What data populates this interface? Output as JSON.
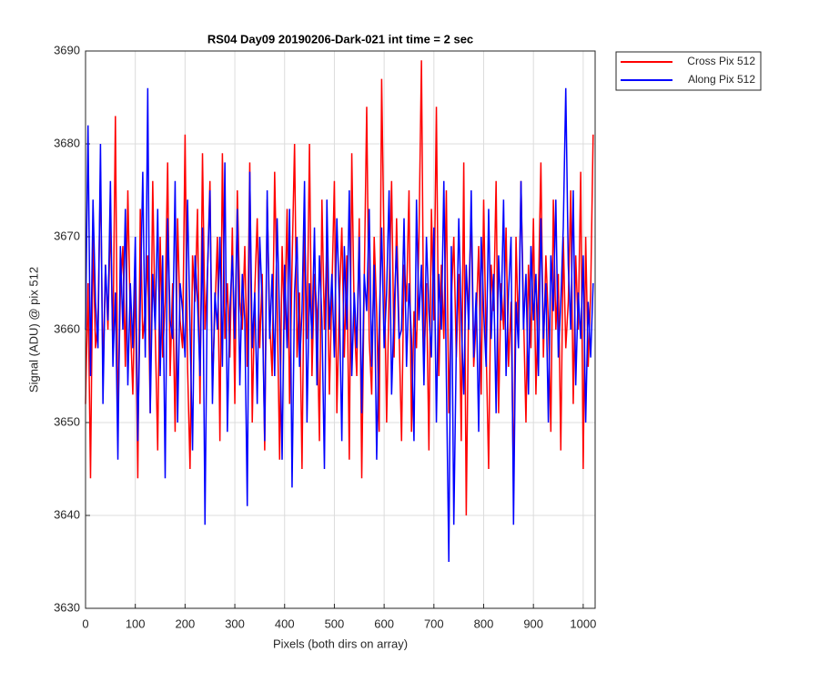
{
  "chart_data": {
    "type": "line",
    "title": "RS04 Day09 20190206-Dark-021 int time = 2 sec",
    "xlabel": "Pixels (both dirs on array)",
    "ylabel": "Signal (ADU) @ pix 512",
    "x": [
      0,
      5,
      10,
      15,
      20,
      25,
      30,
      35,
      40,
      45,
      50,
      55,
      60,
      65,
      70,
      75,
      80,
      85,
      90,
      95,
      100,
      105,
      110,
      115,
      120,
      125,
      130,
      135,
      140,
      145,
      150,
      155,
      160,
      165,
      170,
      175,
      180,
      185,
      190,
      195,
      200,
      205,
      210,
      215,
      220,
      225,
      230,
      235,
      240,
      245,
      250,
      255,
      260,
      265,
      270,
      275,
      280,
      285,
      290,
      295,
      300,
      305,
      310,
      315,
      320,
      325,
      330,
      335,
      340,
      345,
      350,
      355,
      360,
      365,
      370,
      375,
      380,
      385,
      390,
      395,
      400,
      405,
      410,
      415,
      420,
      425,
      430,
      435,
      440,
      445,
      450,
      455,
      460,
      465,
      470,
      475,
      480,
      485,
      490,
      495,
      500,
      505,
      510,
      515,
      520,
      525,
      530,
      535,
      540,
      545,
      550,
      555,
      560,
      565,
      570,
      575,
      580,
      585,
      590,
      595,
      600,
      605,
      610,
      615,
      620,
      625,
      630,
      635,
      640,
      645,
      650,
      655,
      660,
      665,
      670,
      675,
      680,
      685,
      690,
      695,
      700,
      705,
      710,
      715,
      720,
      725,
      730,
      735,
      740,
      745,
      750,
      755,
      760,
      765,
      770,
      775,
      780,
      785,
      790,
      795,
      800,
      805,
      810,
      815,
      820,
      825,
      830,
      835,
      840,
      845,
      850,
      855,
      860,
      865,
      870,
      875,
      880,
      885,
      890,
      895,
      900,
      905,
      910,
      915,
      920,
      925,
      930,
      935,
      940,
      945,
      950,
      955,
      960,
      965,
      970,
      975,
      980,
      985,
      990,
      995,
      1000,
      1005,
      1010,
      1015,
      1020
    ],
    "series": [
      {
        "name": "Cross Pix 512",
        "color": "#ff0000",
        "values": [
          3652,
          3665,
          3644,
          3670,
          3658,
          3661,
          3677,
          3655,
          3667,
          3660,
          3672,
          3658,
          3683,
          3650,
          3664,
          3669,
          3656,
          3675,
          3661,
          3653,
          3666,
          3644,
          3673,
          3659,
          3662,
          3668,
          3651,
          3676,
          3660,
          3647,
          3670,
          3657,
          3663,
          3678,
          3655,
          3665,
          3649,
          3672,
          3661,
          3658,
          3681,
          3656,
          3645,
          3668,
          3663,
          3673,
          3652,
          3679,
          3660,
          3666,
          3676,
          3654,
          3662,
          3670,
          3648,
          3679,
          3659,
          3665,
          3657,
          3671,
          3652,
          3675,
          3663,
          3660,
          3669,
          3656,
          3678,
          3650,
          3664,
          3672,
          3658,
          3666,
          3647,
          3674,
          3661,
          3655,
          3677,
          3663,
          3646,
          3669,
          3660,
          3673,
          3652,
          3667,
          3680,
          3657,
          3664,
          3645,
          3671,
          3659,
          3680,
          3655,
          3666,
          3662,
          3648,
          3674,
          3660,
          3669,
          3653,
          3664,
          3676,
          3651,
          3663,
          3671,
          3657,
          3668,
          3646,
          3679,
          3661,
          3655,
          3672,
          3644,
          3665,
          3684,
          3659,
          3653,
          3670,
          3662,
          3649,
          3687,
          3668,
          3650,
          3664,
          3676,
          3657,
          3672,
          3660,
          3648,
          3667,
          3663,
          3675,
          3649,
          3662,
          3658,
          3670,
          3689,
          3656,
          3665,
          3647,
          3673,
          3661,
          3684,
          3655,
          3667,
          3659,
          3675,
          3651,
          3663,
          3670,
          3657,
          3666,
          3648,
          3678,
          3640,
          3664,
          3672,
          3656,
          3661,
          3669,
          3653,
          3674,
          3658,
          3645,
          3667,
          3662,
          3676,
          3651,
          3665,
          3660,
          3671,
          3656,
          3663,
          3643,
          3670,
          3659,
          3676,
          3662,
          3650,
          3667,
          3658,
          3672,
          3653,
          3664,
          3678,
          3657,
          3668,
          3661,
          3649,
          3674,
          3660,
          3666,
          3647,
          3670,
          3658,
          3663,
          3675,
          3652,
          3668,
          3660,
          3677,
          3645,
          3670,
          3656,
          3664,
          3681
        ]
      },
      {
        "name": "Along Pix 512",
        "color": "#0000ff",
        "values": [
          3660,
          3682,
          3655,
          3674,
          3663,
          3658,
          3680,
          3652,
          3667,
          3661,
          3676,
          3656,
          3664,
          3646,
          3669,
          3660,
          3673,
          3654,
          3665,
          3658,
          3670,
          3648,
          3663,
          3677,
          3657,
          3686,
          3651,
          3666,
          3660,
          3673,
          3655,
          3668,
          3644,
          3672,
          3661,
          3659,
          3676,
          3650,
          3665,
          3662,
          3657,
          3674,
          3660,
          3647,
          3668,
          3663,
          3655,
          3671,
          3639,
          3666,
          3675,
          3652,
          3664,
          3660,
          3670,
          3656,
          3678,
          3649,
          3662,
          3668,
          3659,
          3673,
          3654,
          3666,
          3661,
          3641,
          3677,
          3658,
          3664,
          3652,
          3670,
          3663,
          3648,
          3675,
          3659,
          3666,
          3655,
          3672,
          3661,
          3646,
          3667,
          3658,
          3673,
          3643,
          3664,
          3670,
          3656,
          3662,
          3676,
          3650,
          3665,
          3659,
          3671,
          3654,
          3668,
          3661,
          3645,
          3674,
          3660,
          3666,
          3657,
          3672,
          3663,
          3648,
          3669,
          3660,
          3675,
          3655,
          3664,
          3658,
          3670,
          3651,
          3666,
          3662,
          3673,
          3656,
          3667,
          3646,
          3660,
          3671,
          3658,
          3664,
          3675,
          3653,
          3662,
          3669,
          3659,
          3660,
          3672,
          3656,
          3665,
          3659,
          3648,
          3674,
          3661,
          3667,
          3654,
          3670,
          3662,
          3657,
          3671,
          3650,
          3666,
          3660,
          3676,
          3655,
          3635,
          3669,
          3639,
          3658,
          3672,
          3661,
          3653,
          3667,
          3660,
          3675,
          3657,
          3664,
          3649,
          3670,
          3662,
          3656,
          3673,
          3659,
          3666,
          3651,
          3668,
          3661,
          3674,
          3655,
          3664,
          3670,
          3639,
          3663,
          3658,
          3676,
          3660,
          3666,
          3653,
          3669,
          3661,
          3666,
          3655,
          3672,
          3659,
          3665,
          3650,
          3668,
          3662,
          3674,
          3657,
          3663,
          3671,
          3686,
          3667,
          3660,
          3675,
          3654,
          3664,
          3659,
          3668,
          3650,
          3663,
          3657,
          3665
        ]
      }
    ],
    "xlim": [
      0,
      1024
    ],
    "xticks": [
      0,
      100,
      200,
      300,
      400,
      500,
      600,
      700,
      800,
      900,
      1000
    ],
    "ylim": [
      3630,
      3690
    ],
    "yticks": [
      3630,
      3640,
      3650,
      3660,
      3670,
      3680,
      3690
    ],
    "grid": true,
    "legend": "northeastoutside"
  }
}
